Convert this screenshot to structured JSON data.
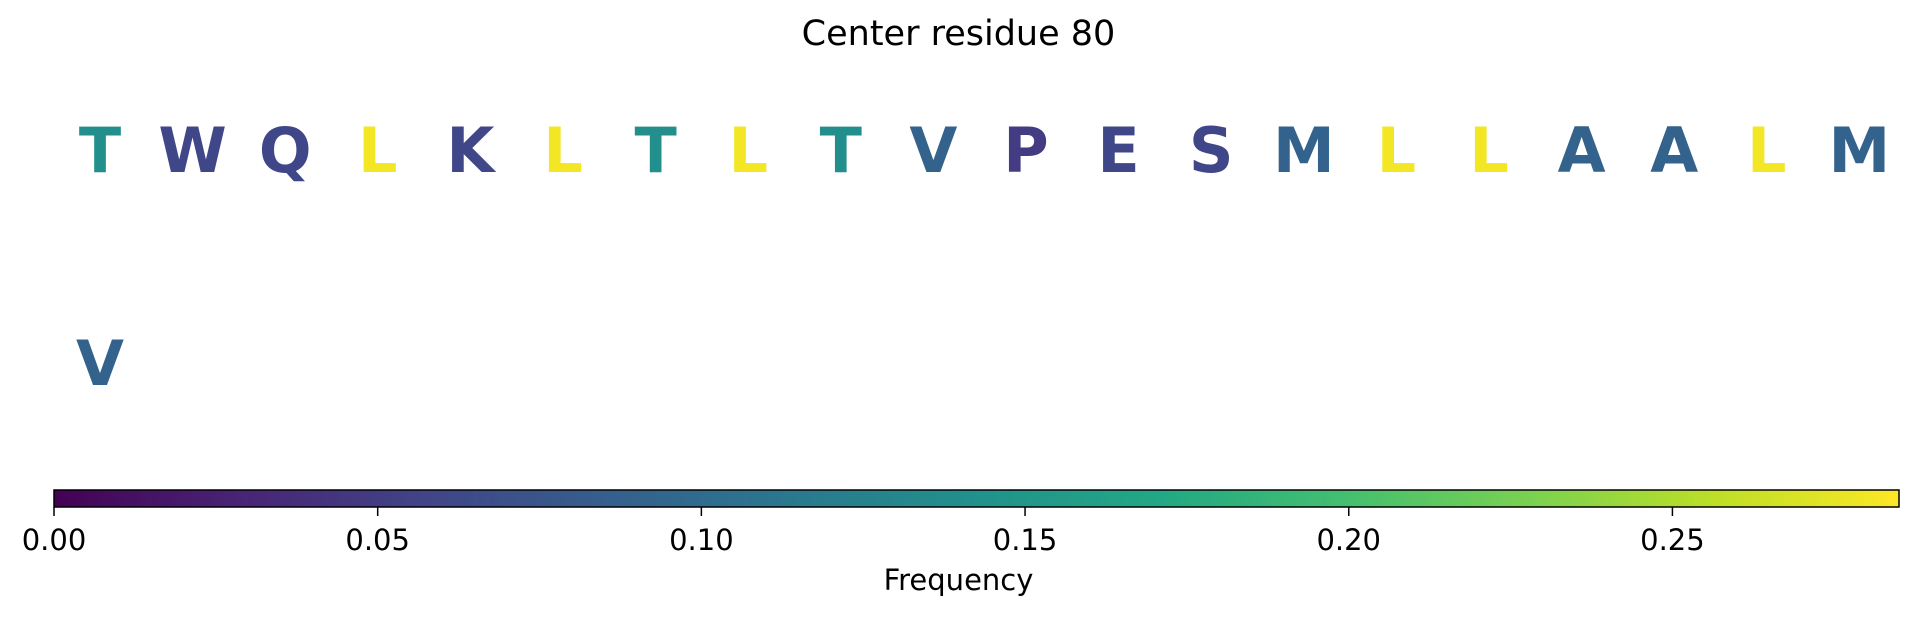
{
  "chart_data": {
    "type": "heatmap",
    "title": "Center residue 80",
    "residues": [
      {
        "letter": "T",
        "frequency": 0.14
      },
      {
        "letter": "W",
        "frequency": 0.06
      },
      {
        "letter": "Q",
        "frequency": 0.06
      },
      {
        "letter": "L",
        "frequency": 0.28
      },
      {
        "letter": "K",
        "frequency": 0.06
      },
      {
        "letter": "L",
        "frequency": 0.28
      },
      {
        "letter": "T",
        "frequency": 0.14
      },
      {
        "letter": "L",
        "frequency": 0.28
      },
      {
        "letter": "T",
        "frequency": 0.14
      },
      {
        "letter": "V",
        "frequency": 0.09
      },
      {
        "letter": "P",
        "frequency": 0.05
      },
      {
        "letter": "E",
        "frequency": 0.06
      },
      {
        "letter": "S",
        "frequency": 0.06
      },
      {
        "letter": "M",
        "frequency": 0.09
      },
      {
        "letter": "L",
        "frequency": 0.28
      },
      {
        "letter": "L",
        "frequency": 0.28
      },
      {
        "letter": "A",
        "frequency": 0.09
      },
      {
        "letter": "A",
        "frequency": 0.09
      },
      {
        "letter": "L",
        "frequency": 0.28
      },
      {
        "letter": "M",
        "frequency": 0.09
      },
      {
        "letter": "V",
        "frequency": 0.09
      }
    ],
    "residues_per_row": 20,
    "colorbar": {
      "label": "Frequency",
      "range": [
        0.0,
        0.285
      ],
      "ticks": [
        0.0,
        0.05,
        0.1,
        0.15,
        0.2,
        0.25
      ],
      "tick_labels": [
        "0.00",
        "0.05",
        "0.10",
        "0.15",
        "0.20",
        "0.25"
      ],
      "colormap": "viridis",
      "orientation": "horizontal",
      "placement": "bottom"
    }
  }
}
